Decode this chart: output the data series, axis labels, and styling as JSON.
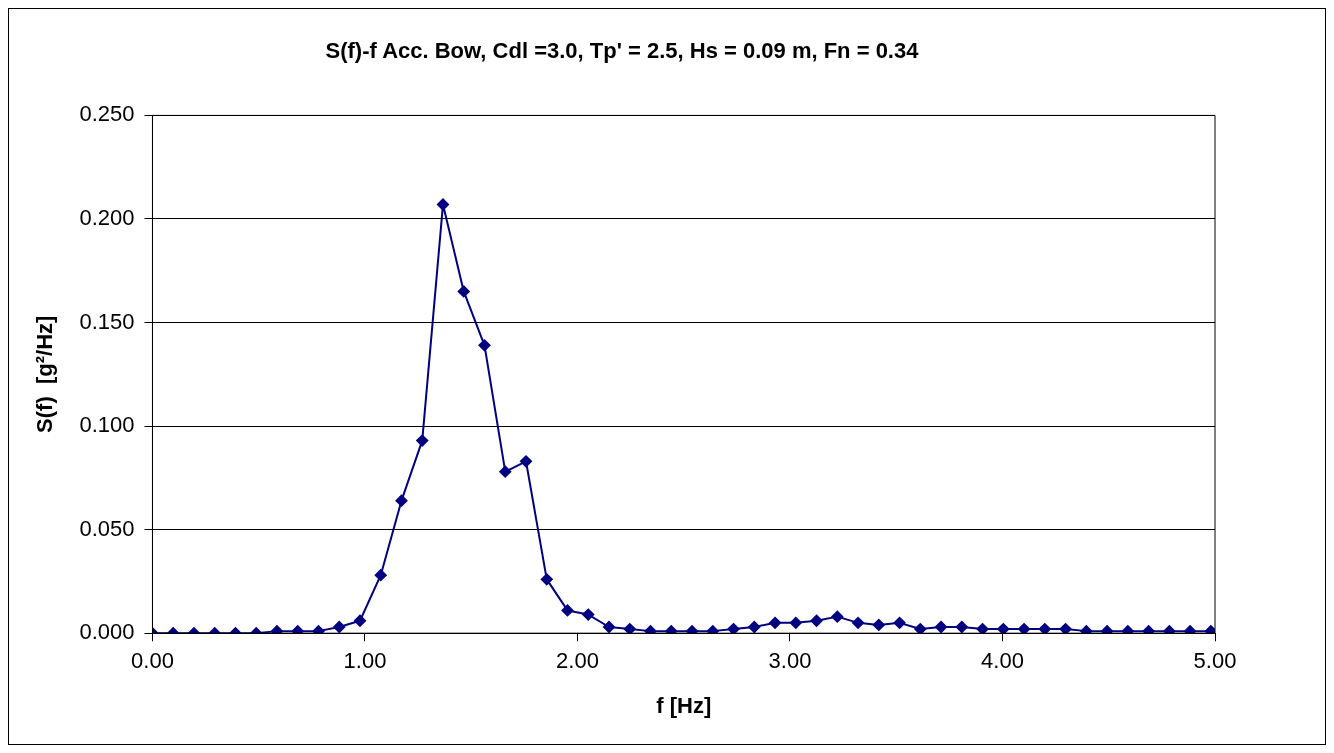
{
  "chart_data": {
    "type": "line",
    "title": "S(f)-f Acc. Bow, Cdl =3.0, Tp' = 2.5, Hs = 0.09 m, Fn = 0.34",
    "xlabel": "f [Hz]",
    "ylabel": "S(f)  [g²/Hz]",
    "x": [
      0,
      0.0977,
      0.1953,
      0.293,
      0.3906,
      0.4883,
      0.5859,
      0.6836,
      0.7813,
      0.8789,
      0.9766,
      1.0742,
      1.1719,
      1.2695,
      1.3672,
      1.4648,
      1.5625,
      1.6602,
      1.7578,
      1.8555,
      1.9531,
      2.0508,
      2.1484,
      2.2461,
      2.3438,
      2.4414,
      2.5391,
      2.6367,
      2.7344,
      2.832,
      2.9297,
      3.0273,
      3.125,
      3.2227,
      3.3203,
      3.418,
      3.5156,
      3.6133,
      3.7109,
      3.8086,
      3.9063,
      4.0039,
      4.1016,
      4.1992,
      4.2969,
      4.3945,
      4.4922,
      4.5898,
      4.6875,
      4.7852,
      4.8828,
      4.9805
    ],
    "series": [
      {
        "color": "#000080",
        "values": [
          0,
          0,
          0,
          0,
          0,
          0,
          0.001,
          0.001,
          0.001,
          0.003,
          0.006,
          0.028,
          0.064,
          0.093,
          0.207,
          0.165,
          0.139,
          0.078,
          0.083,
          0.026,
          0.011,
          0.009,
          0.003,
          0.002,
          0.001,
          0.001,
          0.001,
          0.001,
          0.002,
          0.003,
          0.005,
          0.005,
          0.006,
          0.008,
          0.005,
          0.004,
          0.005,
          0.002,
          0.003,
          0.003,
          0.002,
          0.002,
          0.002,
          0.002,
          0.002,
          0.001,
          0.001,
          0.001,
          0.001,
          0.001,
          0.001,
          0.001
        ]
      }
    ],
    "xlim": [
      0,
      5
    ],
    "xticks": [
      {
        "value": 0,
        "label": "0.00"
      },
      {
        "value": 1,
        "label": "1.00"
      },
      {
        "value": 2,
        "label": "2.00"
      },
      {
        "value": 3,
        "label": "3.00"
      },
      {
        "value": 4,
        "label": "4.00"
      },
      {
        "value": 5,
        "label": "5.00"
      }
    ],
    "ylim": [
      0,
      0.25
    ],
    "yticks": [
      {
        "value": 0,
        "label": "0.000"
      },
      {
        "value": 0.05,
        "label": "0.050"
      },
      {
        "value": 0.1,
        "label": "0.100"
      },
      {
        "value": 0.15,
        "label": "0.150"
      },
      {
        "value": 0.2,
        "label": "0.200"
      },
      {
        "value": 0.25,
        "label": "0.250"
      }
    ],
    "grid": "y",
    "marker": "diamond",
    "line_style": "solid"
  }
}
